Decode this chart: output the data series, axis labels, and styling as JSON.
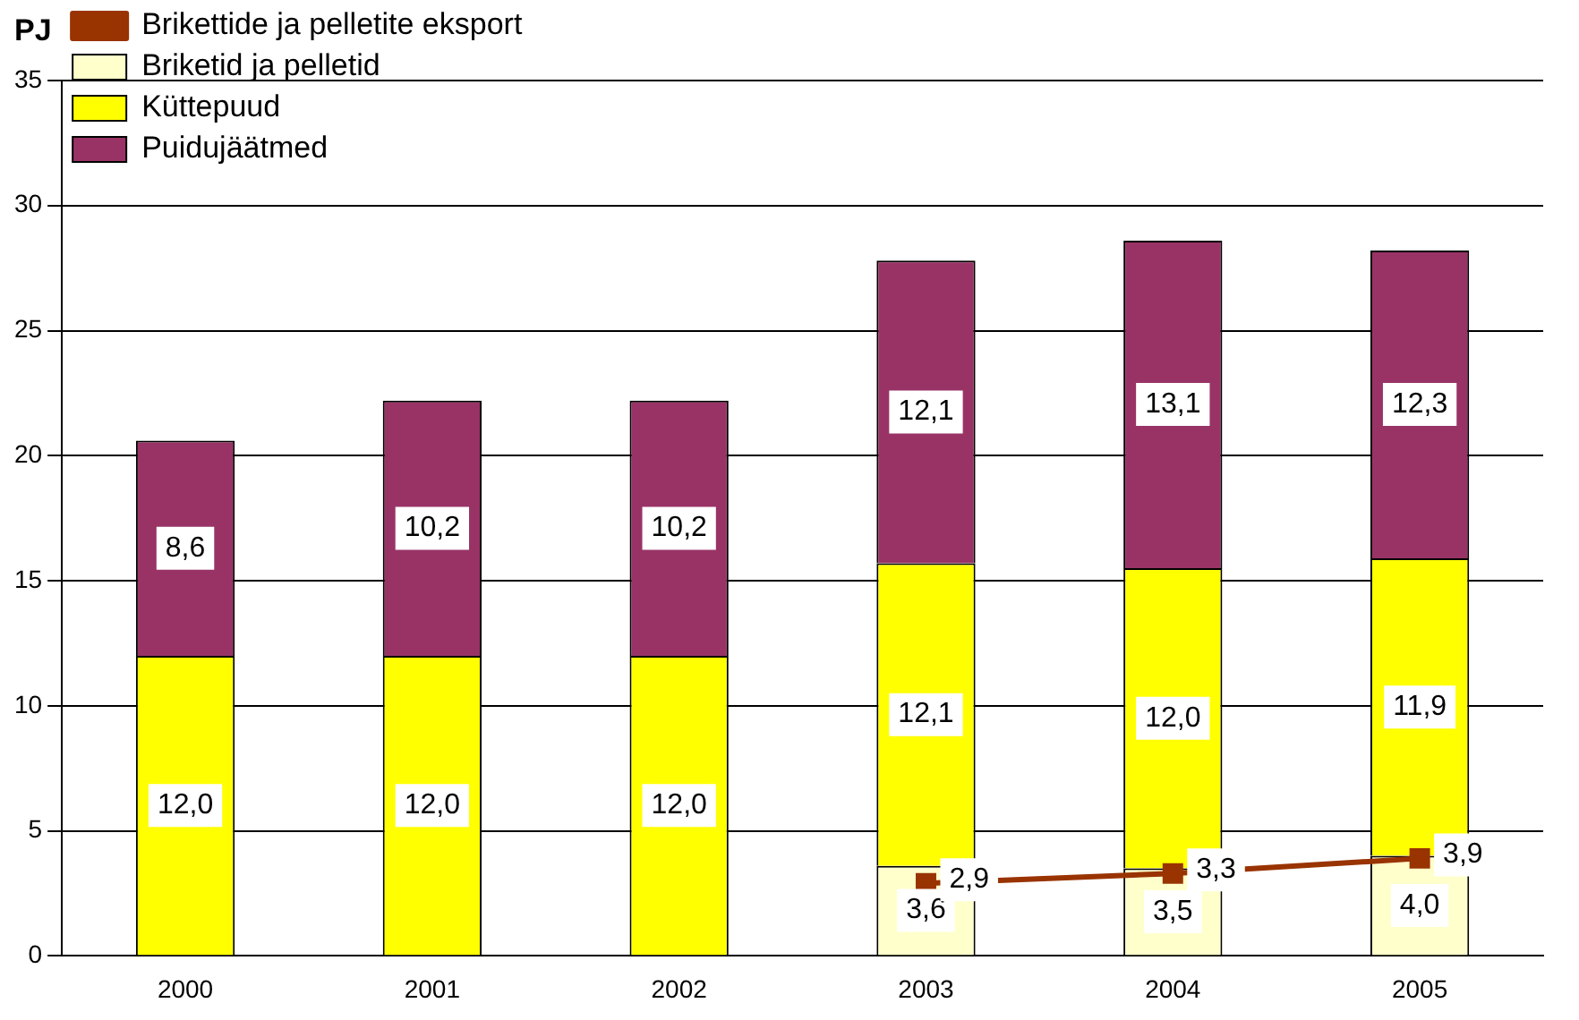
{
  "chart_data": {
    "type": "bar",
    "stacked": true,
    "ylabel": "PJ",
    "categories": [
      "2000",
      "2001",
      "2002",
      "2003",
      "2004",
      "2005"
    ],
    "series": [
      {
        "name": "Briketid ja pelletid",
        "color": "#ffffcc",
        "values": [
          null,
          null,
          null,
          3.6,
          3.5,
          4.0
        ],
        "value_labels": [
          null,
          null,
          null,
          "3,6",
          "3,5",
          "4,0"
        ]
      },
      {
        "name": "Küttepuud",
        "color": "#ffff00",
        "values": [
          12.0,
          12.0,
          12.0,
          12.1,
          12.0,
          11.9
        ],
        "value_labels": [
          "12,0",
          "12,0",
          "12,0",
          "12,1",
          "12,0",
          "11,9"
        ]
      },
      {
        "name": "Puidujäätmed",
        "color": "#993366",
        "values": [
          8.6,
          10.2,
          10.2,
          12.1,
          13.1,
          12.3
        ],
        "value_labels": [
          "8,6",
          "10,2",
          "10,2",
          "12,1",
          "13,1",
          "12,3"
        ]
      },
      {
        "name": "Brikettide ja pelletite eksport",
        "type": "line",
        "color": "#993300",
        "marker": "square",
        "values": [
          null,
          null,
          null,
          2.9,
          3.3,
          3.9
        ],
        "value_labels": [
          null,
          null,
          null,
          "2,9",
          "3,3",
          "3,9"
        ]
      }
    ],
    "ylim": [
      0,
      35
    ],
    "yticks": [
      0,
      5,
      10,
      15,
      20,
      25,
      30,
      35
    ],
    "grid": "y",
    "legend": "top left"
  }
}
